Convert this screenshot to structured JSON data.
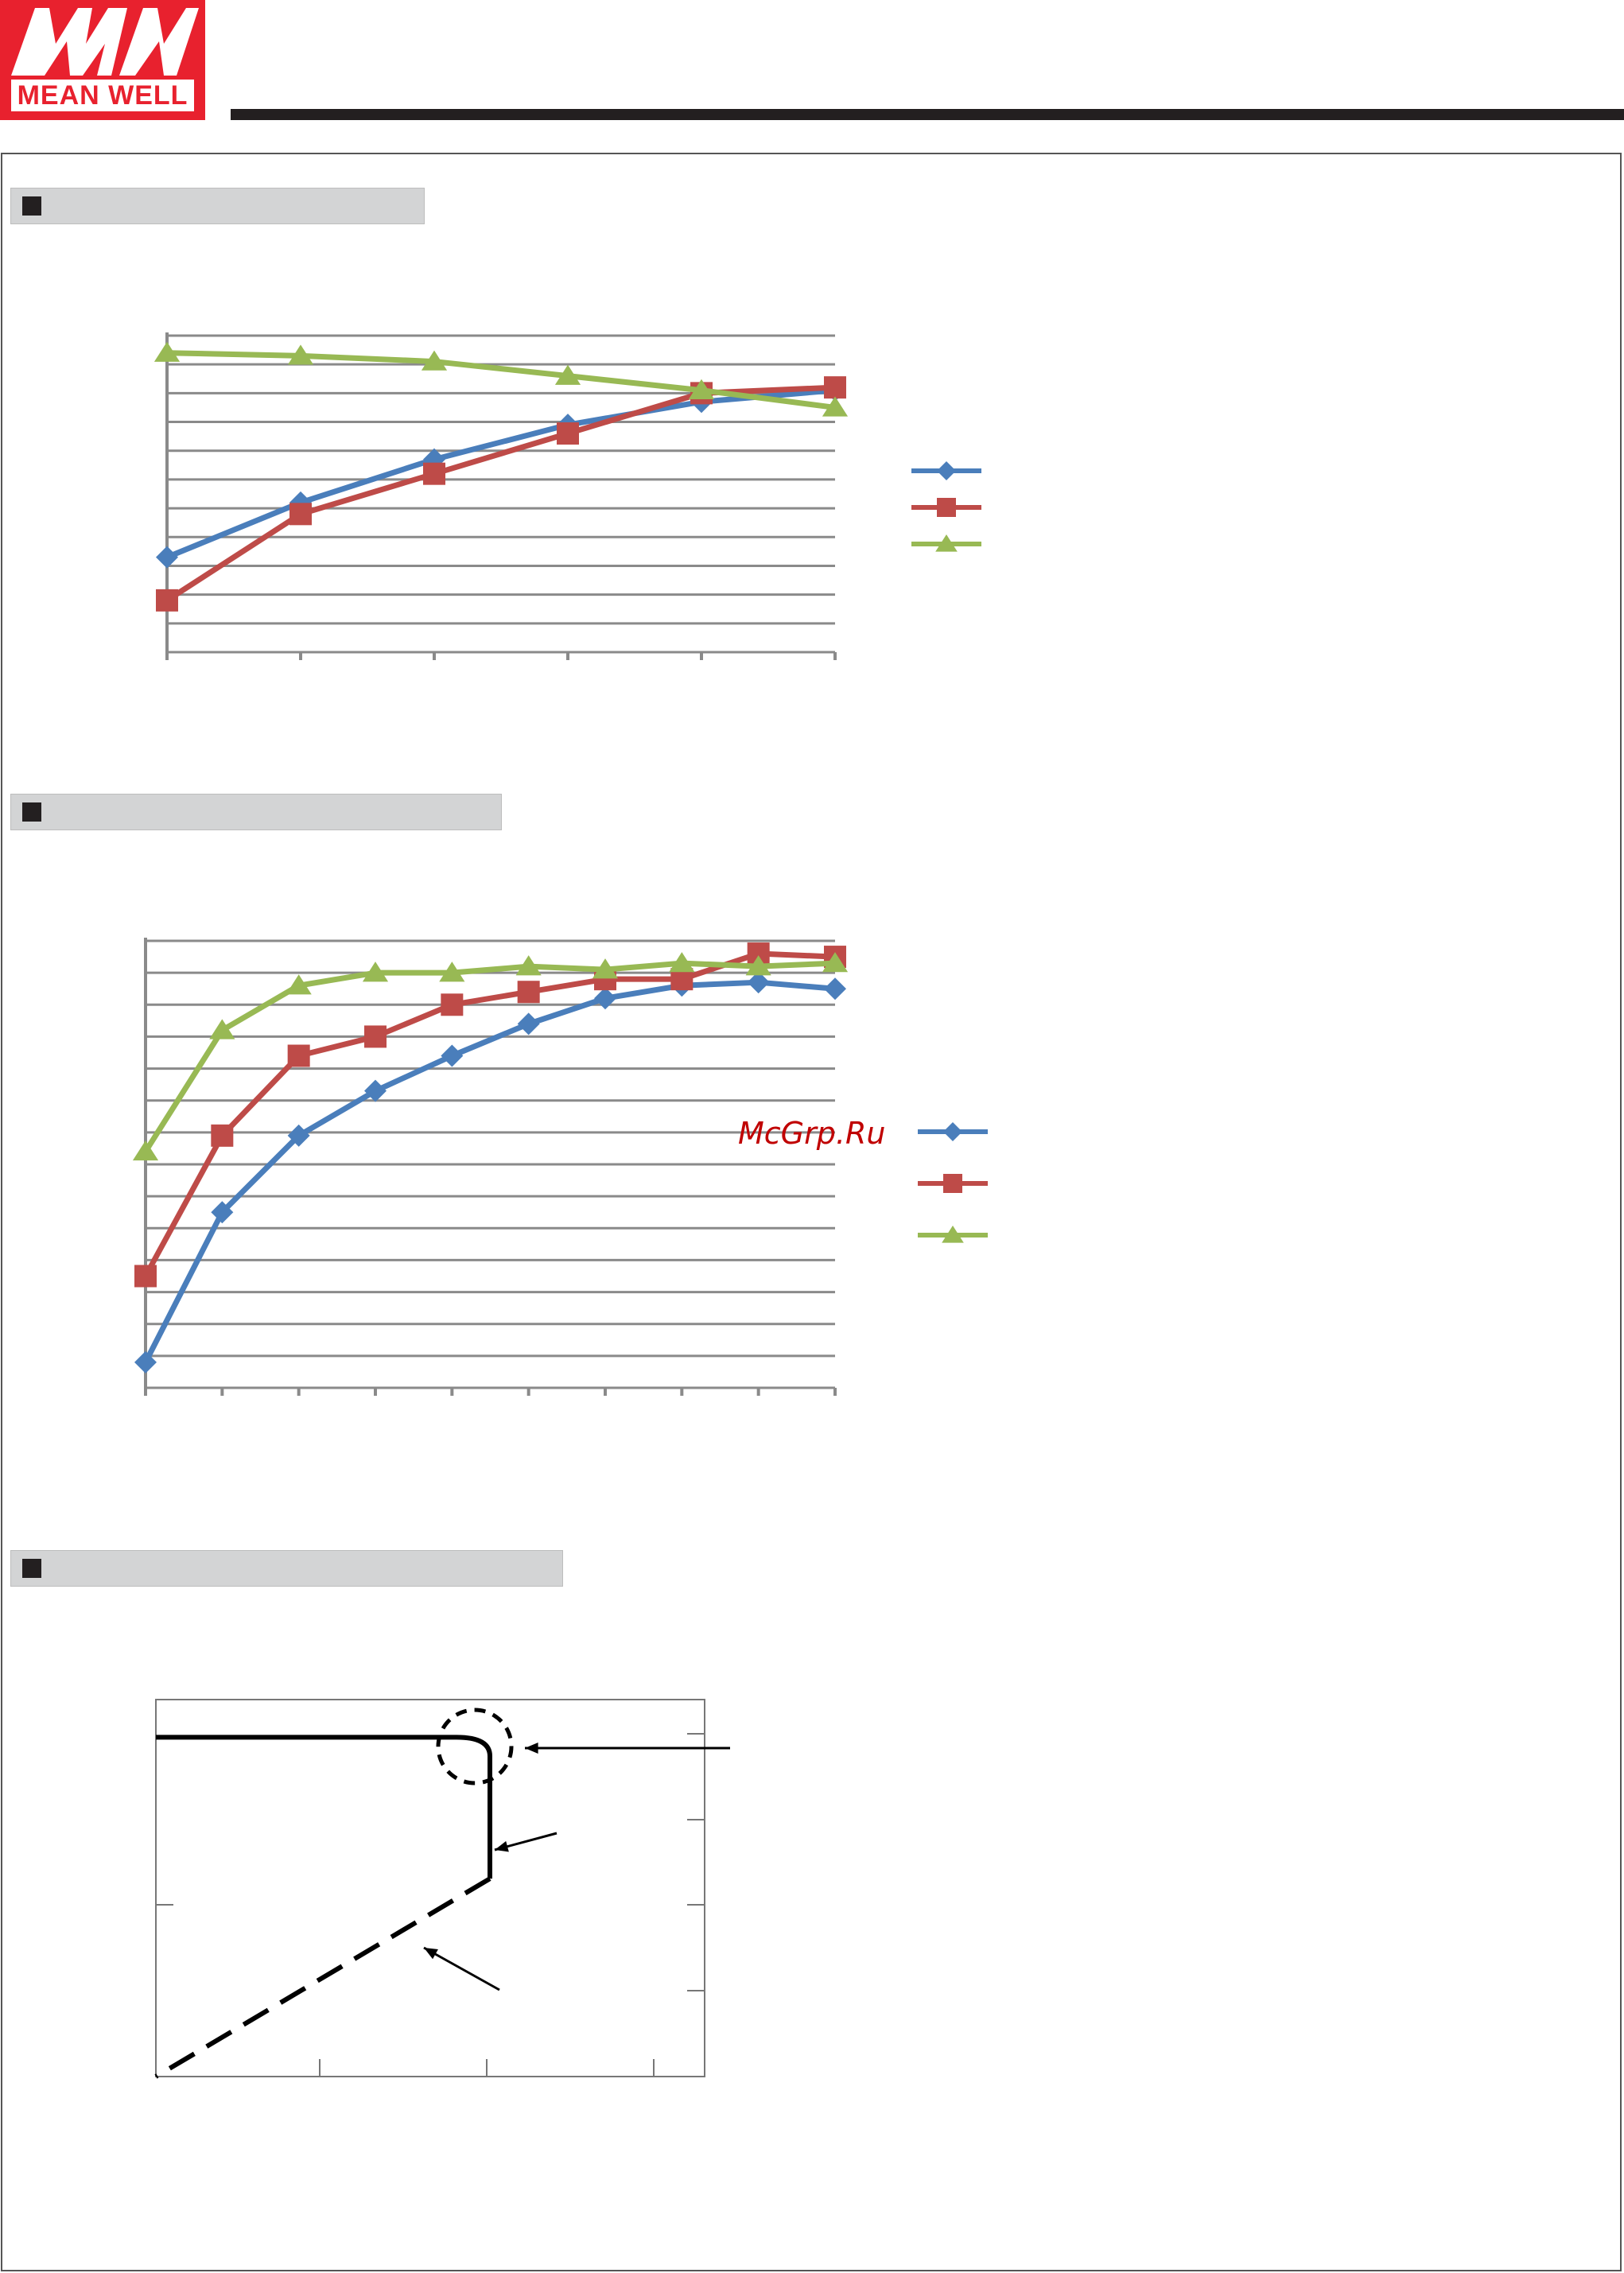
{
  "header": {
    "logo_text": "MEAN WELL",
    "logo_mark": "MW",
    "brand_color": "#e8212e",
    "rule_color": "#231f20"
  },
  "watermark": "McGrp.Ru",
  "sections": [
    {
      "title": ""
    },
    {
      "title": ""
    },
    {
      "title": ""
    }
  ],
  "series_colors": {
    "blue": "#4a7ebb",
    "red": "#be4b48",
    "green": "#98b954"
  },
  "chart_data": [
    {
      "type": "line",
      "title": "",
      "xlabel": "",
      "ylabel": "",
      "grid": true,
      "legend_position": "right",
      "x_points": 6,
      "y_gridlines": 11,
      "ylim": [
        0,
        11
      ],
      "series": [
        {
          "color": "blue",
          "marker": "diamond",
          "values": [
            3.3,
            5.2,
            6.7,
            7.9,
            8.7,
            9.1
          ]
        },
        {
          "color": "red",
          "marker": "square",
          "values": [
            1.8,
            4.8,
            6.2,
            7.6,
            9.0,
            9.2
          ]
        },
        {
          "color": "green",
          "marker": "triangle",
          "values": [
            10.4,
            10.3,
            10.1,
            9.6,
            9.1,
            8.5
          ]
        }
      ]
    },
    {
      "type": "line",
      "title": "",
      "xlabel": "",
      "ylabel": "",
      "grid": true,
      "legend_position": "right",
      "x_points": 10,
      "y_gridlines": 14,
      "ylim": [
        0,
        14
      ],
      "series": [
        {
          "color": "blue",
          "marker": "diamond",
          "values": [
            0.8,
            5.5,
            7.9,
            9.3,
            10.4,
            11.4,
            12.2,
            12.6,
            12.7,
            12.5
          ]
        },
        {
          "color": "red",
          "marker": "square",
          "values": [
            3.5,
            7.9,
            10.4,
            11.0,
            12.0,
            12.4,
            12.8,
            12.8,
            13.6,
            13.5
          ]
        },
        {
          "color": "green",
          "marker": "triangle",
          "values": [
            7.4,
            11.2,
            12.6,
            13.0,
            13.0,
            13.2,
            13.1,
            13.3,
            13.2,
            13.3
          ]
        }
      ]
    },
    {
      "type": "line",
      "title": "",
      "xlabel": "",
      "ylabel": "",
      "grid": false,
      "x": [
        0,
        1,
        2,
        3
      ],
      "ylim": [
        0,
        4
      ],
      "series": [
        {
          "style": "solid",
          "points": [
            [
              0,
              3.6
            ],
            [
              1.8,
              3.6
            ],
            [
              2.0,
              3.4
            ],
            [
              2.0,
              2.1
            ]
          ]
        },
        {
          "style": "dashed",
          "points": [
            [
              2.0,
              2.1
            ],
            [
              0,
              0
            ]
          ]
        }
      ]
    }
  ]
}
